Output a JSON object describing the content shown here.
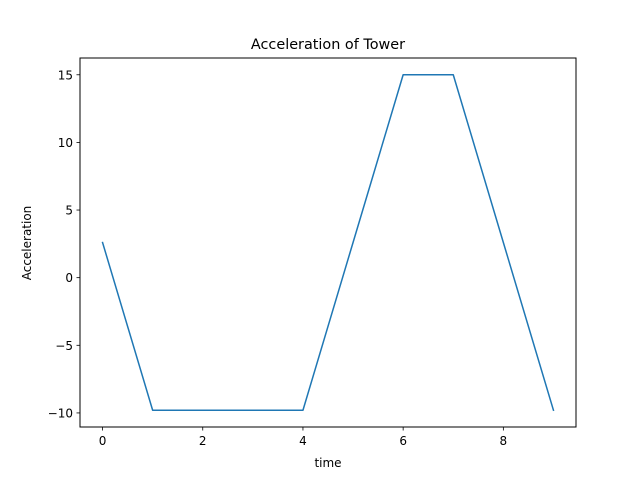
{
  "chart_data": {
    "type": "line",
    "title": "Acceleration  of Tower",
    "xlabel": "time",
    "ylabel": "Acceleration",
    "xlim": [
      -0.45,
      9.45
    ],
    "ylim": [
      -11.04,
      16.24
    ],
    "xticks": [
      0,
      2,
      4,
      6,
      8
    ],
    "xtick_labels": [
      "0",
      "2",
      "4",
      "6",
      "8"
    ],
    "yticks": [
      -10,
      -5,
      0,
      5,
      10,
      15
    ],
    "ytick_labels": [
      "−10",
      "−5",
      "0",
      "5",
      "10",
      "15"
    ],
    "grid": false,
    "line_color": "#1f77b4",
    "series": [
      {
        "x": [
          0,
          1,
          2,
          3,
          4,
          5,
          6,
          7,
          8,
          9
        ],
        "values": [
          2.6,
          -9.8,
          -9.8,
          -9.8,
          -9.8,
          2.6,
          15,
          15,
          2.6,
          -9.8
        ]
      }
    ]
  }
}
